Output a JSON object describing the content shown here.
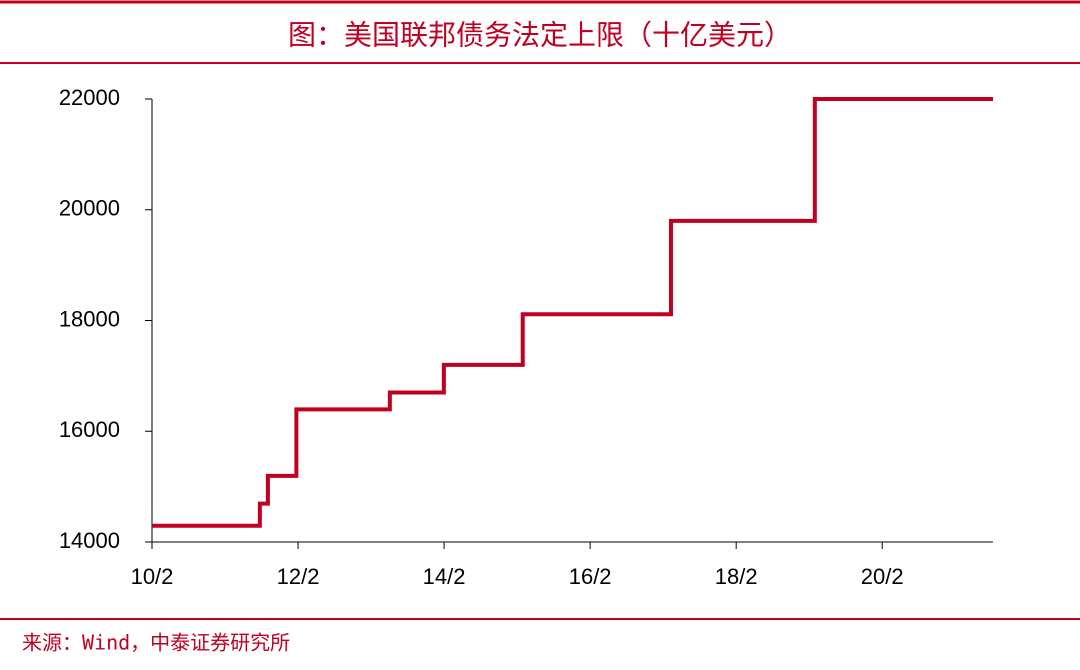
{
  "chart_data": {
    "type": "step-line",
    "title": "图：美国联邦债务法定上限（十亿美元）",
    "source": "来源：Wind，中泰证券研究所",
    "x": [
      2010.083,
      2011.56,
      2011.67,
      2012.06,
      2013.34,
      2014.08,
      2015.16,
      2017.19,
      2019.16,
      2021.6
    ],
    "series": [
      {
        "name": "美国联邦债务法定上限",
        "color": "#c00020",
        "values": [
          14294,
          14694,
          15194,
          16394,
          16699,
          17199,
          18113,
          19800,
          22000,
          22000
        ]
      }
    ],
    "xlim": [
      2010.083,
      2021.6
    ],
    "xticks": [
      {
        "value": 2010.083,
        "label": "10/2"
      },
      {
        "value": 2012.083,
        "label": "12/2"
      },
      {
        "value": 2014.083,
        "label": "14/2"
      },
      {
        "value": 2016.083,
        "label": "16/2"
      },
      {
        "value": 2018.083,
        "label": "18/2"
      },
      {
        "value": 2020.083,
        "label": "20/2"
      }
    ],
    "ylim": [
      14000,
      22000
    ],
    "yticks": [
      14000,
      16000,
      18000,
      20000,
      22000
    ],
    "grid": false
  }
}
